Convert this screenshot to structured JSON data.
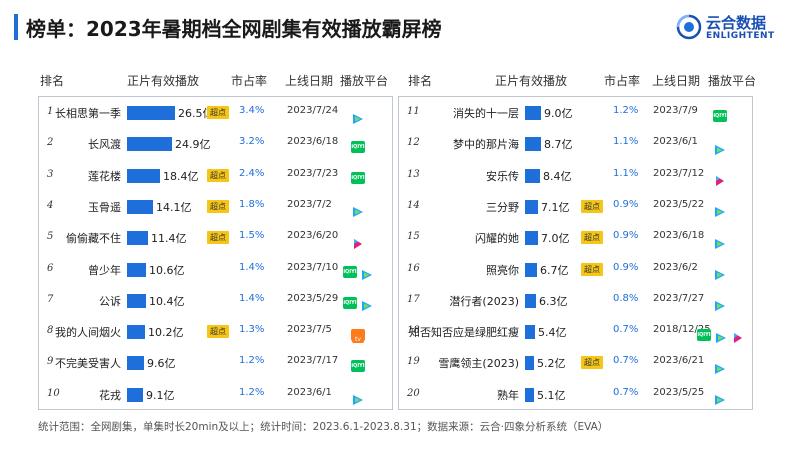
{
  "header": {
    "title": "榜单：2023年暑期档全网剧集有效播放霸屏榜",
    "brand_cn": "云合数据",
    "brand_en": "ENLIGHTENT"
  },
  "columns": {
    "left": {
      "rank": "排名",
      "views": "正片有效播放",
      "share": "市占率",
      "date": "上线日期",
      "platform": "播放平台"
    },
    "right": {
      "rank": "排名",
      "views": "正片有效播放",
      "share": "市占率",
      "date": "上线日期",
      "platform": "播放平台"
    }
  },
  "colors": {
    "accent": "#1e6fd9",
    "badge": "#f5c518",
    "iqiyi": "#00c05a",
    "tencent": "#1aa7ff",
    "mango": "#ff7a1a"
  },
  "badge_label": "超点",
  "chart_data": {
    "type": "bar",
    "title": "榜单：2023年暑期档全网剧集有效播放霸屏榜",
    "unit": "亿",
    "rows": [
      {
        "rank": "1",
        "name": "长相思第一季",
        "value": 26.5,
        "value_label": "26.5亿",
        "badge": true,
        "share": "3.4%",
        "date": "2023/7/24",
        "platforms": [
          "tencent"
        ]
      },
      {
        "rank": "2",
        "name": "长风渡",
        "value": 24.9,
        "value_label": "24.9亿",
        "badge": false,
        "share": "3.2%",
        "date": "2023/6/18",
        "platforms": [
          "iqiyi"
        ]
      },
      {
        "rank": "3",
        "name": "莲花楼",
        "value": 18.4,
        "value_label": "18.4亿",
        "badge": true,
        "share": "2.4%",
        "date": "2023/7/23",
        "platforms": [
          "iqiyi"
        ]
      },
      {
        "rank": "4",
        "name": "玉骨遥",
        "value": 14.1,
        "value_label": "14.1亿",
        "badge": true,
        "share": "1.8%",
        "date": "2023/7/2",
        "platforms": [
          "tencent"
        ]
      },
      {
        "rank": "5",
        "name": "偷偷藏不住",
        "value": 11.4,
        "value_label": "11.4亿",
        "badge": true,
        "share": "1.5%",
        "date": "2023/6/20",
        "platforms": [
          "youku"
        ]
      },
      {
        "rank": "6",
        "name": "曾少年",
        "value": 10.6,
        "value_label": "10.6亿",
        "badge": false,
        "share": "1.4%",
        "date": "2023/7/10",
        "platforms": [
          "iqiyi",
          "tencent"
        ]
      },
      {
        "rank": "7",
        "name": "公诉",
        "value": 10.4,
        "value_label": "10.4亿",
        "badge": false,
        "share": "1.4%",
        "date": "2023/5/29",
        "platforms": [
          "iqiyi",
          "tencent"
        ]
      },
      {
        "rank": "8",
        "name": "我的人间烟火",
        "value": 10.2,
        "value_label": "10.2亿",
        "badge": true,
        "share": "1.3%",
        "date": "2023/7/5",
        "platforms": [
          "mango"
        ]
      },
      {
        "rank": "9",
        "name": "不完美受害人",
        "value": 9.6,
        "value_label": "9.6亿",
        "badge": false,
        "share": "1.2%",
        "date": "2023/7/17",
        "platforms": [
          "iqiyi"
        ]
      },
      {
        "rank": "10",
        "name": "花戎",
        "value": 9.1,
        "value_label": "9.1亿",
        "badge": false,
        "share": "1.2%",
        "date": "2023/6/1",
        "platforms": [
          "tencent"
        ]
      },
      {
        "rank": "11",
        "name": "消失的十一层",
        "value": 9.0,
        "value_label": "9.0亿",
        "badge": false,
        "share": "1.2%",
        "date": "2023/7/9",
        "platforms": [
          "iqiyi"
        ]
      },
      {
        "rank": "12",
        "name": "梦中的那片海",
        "value": 8.7,
        "value_label": "8.7亿",
        "badge": false,
        "share": "1.1%",
        "date": "2023/6/1",
        "platforms": [
          "tencent"
        ]
      },
      {
        "rank": "13",
        "name": "安乐传",
        "value": 8.4,
        "value_label": "8.4亿",
        "badge": false,
        "share": "1.1%",
        "date": "2023/7/12",
        "platforms": [
          "youku"
        ]
      },
      {
        "rank": "14",
        "name": "三分野",
        "value": 7.1,
        "value_label": "7.1亿",
        "badge": true,
        "share": "0.9%",
        "date": "2023/5/22",
        "platforms": [
          "tencent"
        ]
      },
      {
        "rank": "15",
        "name": "闪耀的她",
        "value": 7.0,
        "value_label": "7.0亿",
        "badge": true,
        "share": "0.9%",
        "date": "2023/6/18",
        "platforms": [
          "tencent"
        ]
      },
      {
        "rank": "16",
        "name": "照亮你",
        "value": 6.7,
        "value_label": "6.7亿",
        "badge": true,
        "share": "0.9%",
        "date": "2023/6/2",
        "platforms": [
          "tencent"
        ]
      },
      {
        "rank": "17",
        "name": "潜行者(2023)",
        "value": 6.3,
        "value_label": "6.3亿",
        "badge": false,
        "share": "0.8%",
        "date": "2023/7/27",
        "platforms": [
          "tencent"
        ]
      },
      {
        "rank": "18",
        "name": "知否知否应是绿肥红瘦",
        "value": 5.4,
        "value_label": "5.4亿",
        "badge": false,
        "share": "0.7%",
        "date": "2018/12/25",
        "platforms": [
          "iqiyi",
          "tencent",
          "youku"
        ]
      },
      {
        "rank": "19",
        "name": "雪鹰领主(2023)",
        "value": 5.2,
        "value_label": "5.2亿",
        "badge": true,
        "share": "0.7%",
        "date": "2023/6/21",
        "platforms": [
          "tencent"
        ]
      },
      {
        "rank": "20",
        "name": "熟年",
        "value": 5.1,
        "value_label": "5.1亿",
        "badge": false,
        "share": "0.7%",
        "date": "2023/5/25",
        "platforms": [
          "tencent"
        ]
      }
    ]
  },
  "footer": "统计范围：全网剧集，单集时长20min及以上；统计时间：2023.6.1-2023.8.31；数据来源：云合·四象分析系统（EVA）"
}
